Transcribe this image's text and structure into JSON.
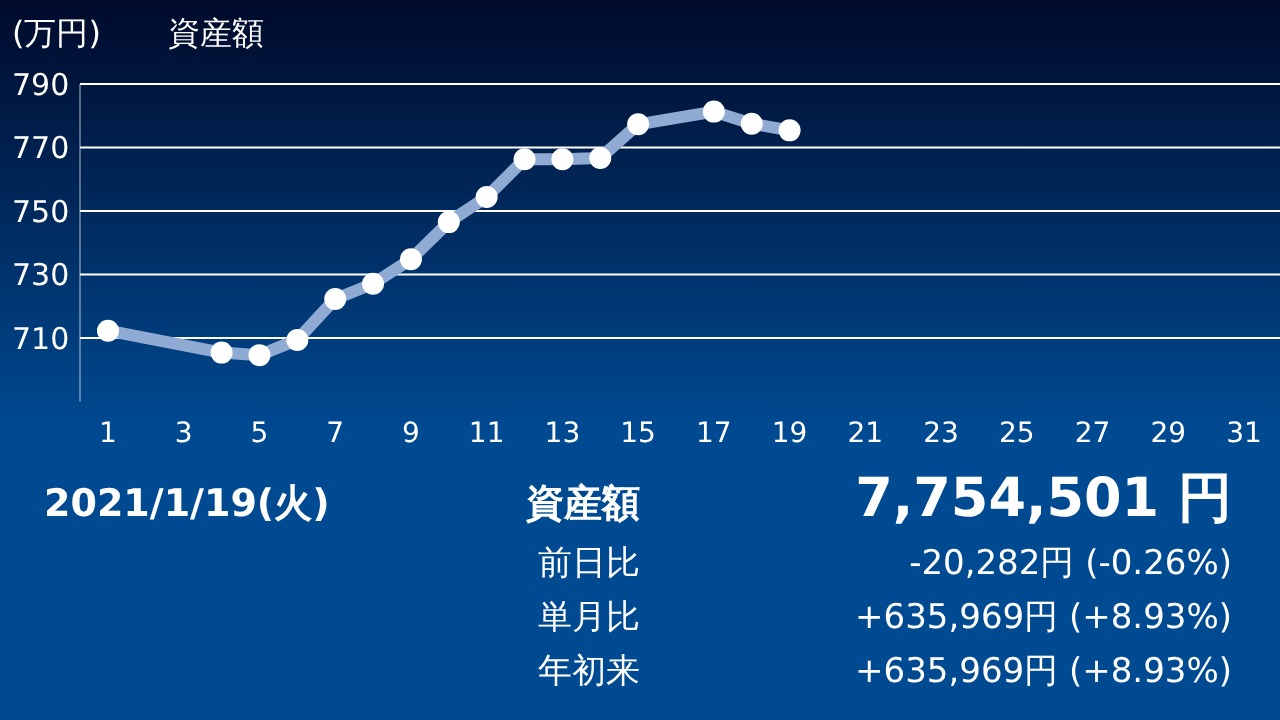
{
  "chart_data": {
    "type": "line",
    "title": "資産額",
    "ylabel": "(万円)",
    "x": [
      1,
      4,
      5,
      6,
      7,
      8,
      9,
      10,
      11,
      12,
      13,
      14,
      15,
      17,
      18,
      19
    ],
    "series": [
      {
        "color": "#8fabd3",
        "values": [
          712.3,
          705.4,
          704.6,
          709.4,
          722.3,
          727.1,
          734.8,
          746.5,
          754.4,
          766.3,
          766.3,
          766.7,
          777.3,
          781.3,
          777.5,
          775.4
        ]
      }
    ],
    "xlim": [
      1,
      31
    ],
    "ylim": [
      690,
      790
    ],
    "xticks": [
      1,
      3,
      5,
      7,
      9,
      11,
      13,
      15,
      17,
      19,
      21,
      23,
      25,
      27,
      29,
      31
    ],
    "yticks": [
      710,
      730,
      750,
      770,
      790
    ],
    "grid": "y",
    "marker": "circle",
    "line_style": "solid",
    "annotations": [
      "2021/1/19(火)",
      "資産額",
      "7,754,501 円",
      "前日比",
      "-20,282円 (-0.26%)",
      "単月比",
      "+635,969円 (+8.93%)",
      "年初来",
      "+635,969円 (+8.93%)"
    ]
  }
}
